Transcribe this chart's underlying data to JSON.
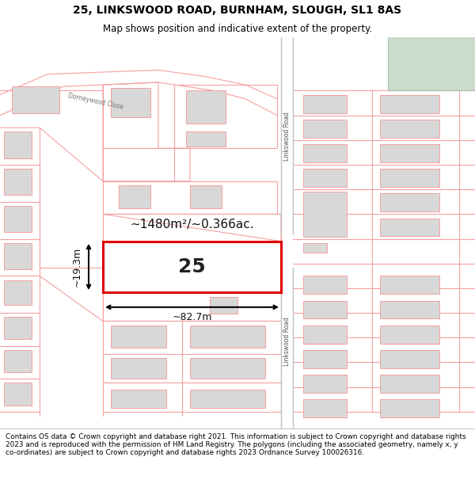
{
  "title": "25, LINKSWOOD ROAD, BURNHAM, SLOUGH, SL1 8AS",
  "subtitle": "Map shows position and indicative extent of the property.",
  "footer": "Contains OS data © Crown copyright and database right 2021. This information is subject to Crown copyright and database rights 2023 and is reproduced with the permission of HM Land Registry. The polygons (including the associated geometry, namely x, y co-ordinates) are subject to Crown copyright and database rights 2023 Ordnance Survey 100026316.",
  "bg_color": "#ffffff",
  "map_bg": "#ffffff",
  "road_color": "#f5a0a0",
  "road_lw": 0.8,
  "highlight_color": "#dd0000",
  "highlight_lw": 2.2,
  "building_fill": "#d8d8d8",
  "building_edge": "#f5a0a0",
  "green_fill": "#ccdccc",
  "area_label": "~1480m²/~0.366ac.",
  "width_label": "~82.7m",
  "height_label": "~19.3m",
  "parcel_number": "25",
  "road_label_upper": "Linkswood Road",
  "road_label_lower": "Linkswood Road",
  "street_label": "Dorneywood Close",
  "title_fontsize": 10,
  "subtitle_fontsize": 8.5
}
